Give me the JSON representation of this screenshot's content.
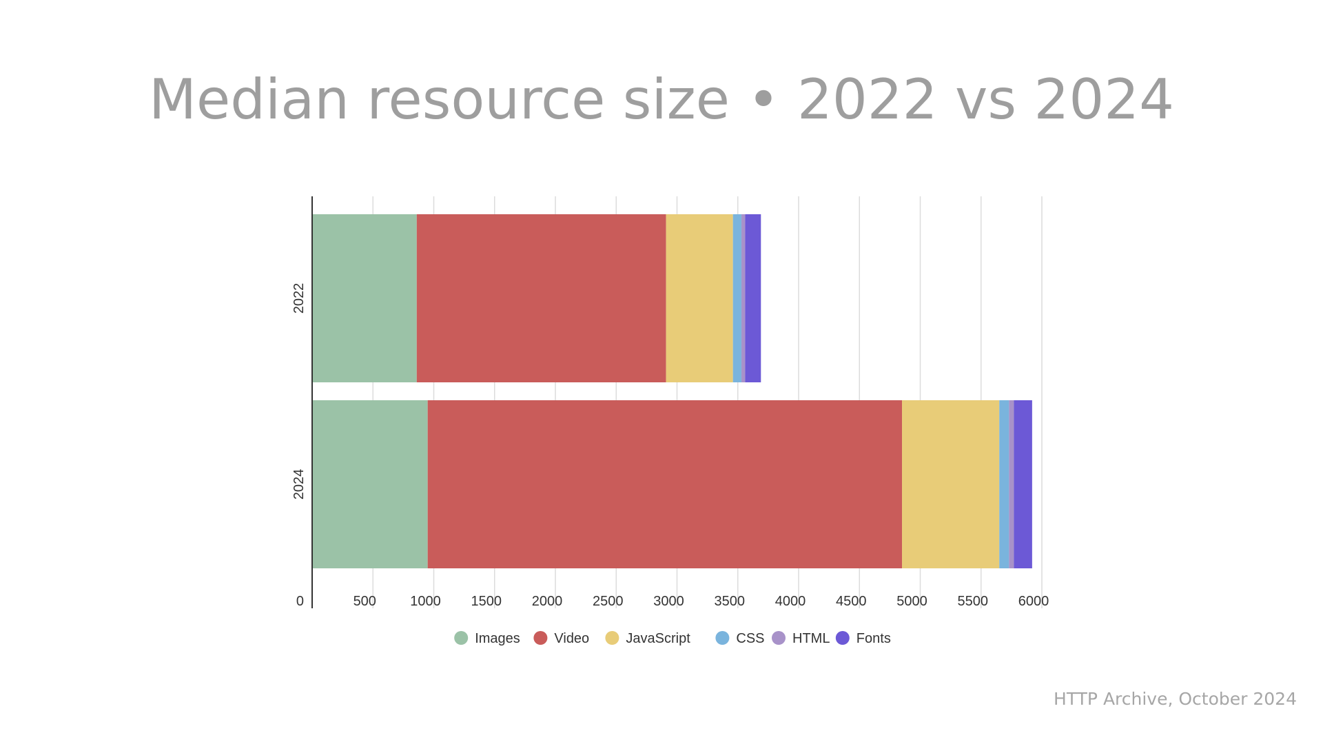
{
  "slide": {
    "title": "Median resource size • 2022 vs 2024",
    "source": "HTTP Archive, October 2024"
  },
  "chart_data": {
    "type": "bar",
    "orientation": "horizontal",
    "stacked": true,
    "categories": [
      "2022",
      "2024"
    ],
    "series": [
      {
        "name": "Images",
        "color": "#9bc2a7",
        "values": [
          860,
          950
        ]
      },
      {
        "name": "Video",
        "color": "#c95c5a",
        "values": [
          2050,
          3900
        ]
      },
      {
        "name": "JavaScript",
        "color": "#e8cc78",
        "values": [
          550,
          800
        ]
      },
      {
        "name": "CSS",
        "color": "#7ab4dd",
        "values": [
          70,
          80
        ]
      },
      {
        "name": "HTML",
        "color": "#a892c9",
        "values": [
          30,
          40
        ]
      },
      {
        "name": "Fonts",
        "color": "#6c59d6",
        "values": [
          130,
          150
        ]
      }
    ],
    "x_ticks": [
      "0",
      "500",
      "1000",
      "1500",
      "2000",
      "2500",
      "3000",
      "3500",
      "4000",
      "4500",
      "5000",
      "5500",
      "6000"
    ],
    "xlim": [
      0,
      6000
    ],
    "grid": true,
    "legend_position": "bottom"
  }
}
